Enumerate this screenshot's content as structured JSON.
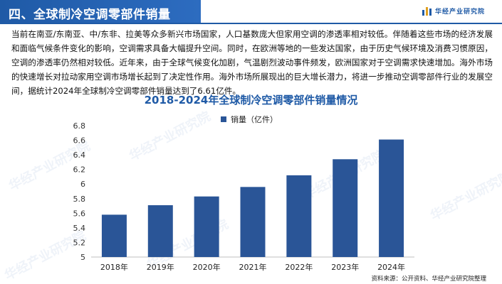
{
  "header": {
    "title": "四、全球制冷空调零部件销量",
    "brand": "华经产业研究院"
  },
  "paragraph": "当前在南亚/东南亚、中/东非、拉美等众多新兴市场国家，人口基数庞大但家用空调的渗透率相对较低。伴随着这些市场的经济发展和面临气候条件变化的影响，空调需求具备大幅提升空间。同时，在欧洲等地的一些发达国家，由于历史气候环境及消费习惯原因，空调的渗透率仍然相对较低。近年来，由于全球气候变化加剧，气温剧烈波动事件频发，欧洲国家对于空调需求快速增加。海外市场的快速增长对拉动家用空调市场增长起到了决定性作用。海外市场所展现出的巨大增长潜力，将进一步推动空调零部件行业的发展空间，据统计2024年全球制冷空调零部件销量达到了6.61亿件。",
  "watermark": "华经产业研究院",
  "footnote": "资料来源：公开资料、华经产业研究院整理",
  "chart_data": {
    "type": "bar",
    "title": "2018-2024年全球制冷空调零部件销量情况",
    "categories": [
      "2018年",
      "2019年",
      "2020年",
      "2021年",
      "2022年",
      "2023年",
      "2024年"
    ],
    "series": [
      {
        "name": "销量（亿件）",
        "values": [
          5.58,
          5.71,
          5.83,
          5.96,
          6.12,
          6.34,
          6.61
        ],
        "color": "#2a5597"
      }
    ],
    "ylim": [
      5,
      6.8
    ],
    "yticks": [
      "5",
      "5.2",
      "5.4",
      "5.6",
      "5.8",
      "6",
      "6.2",
      "6.4",
      "6.6",
      "6.8"
    ],
    "ytick_values": [
      5,
      5.2,
      5.4,
      5.6,
      5.8,
      6,
      6.2,
      6.4,
      6.6,
      6.8
    ],
    "grid": false,
    "legend": "top-center"
  }
}
